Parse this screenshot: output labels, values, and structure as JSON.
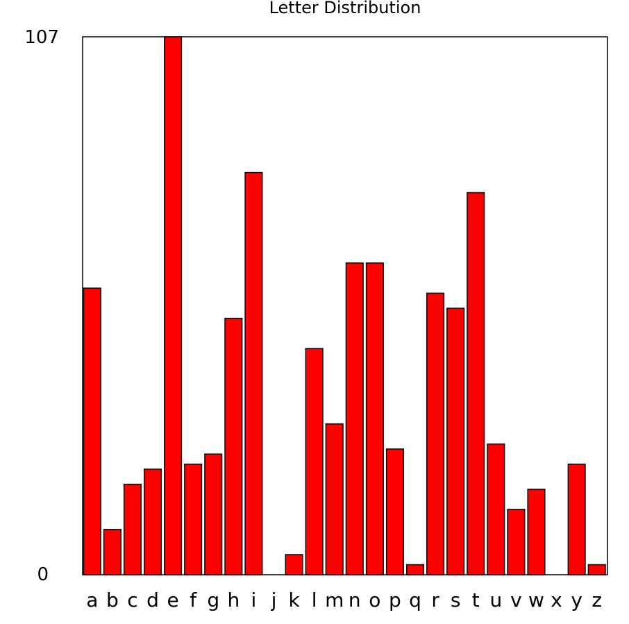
{
  "chart_data": {
    "type": "bar",
    "title": "Letter Distribution",
    "xlabel": "",
    "ylabel": "",
    "categories": [
      "a",
      "b",
      "c",
      "d",
      "e",
      "f",
      "g",
      "h",
      "i",
      "j",
      "k",
      "l",
      "m",
      "n",
      "o",
      "p",
      "q",
      "r",
      "s",
      "t",
      "u",
      "v",
      "w",
      "x",
      "y",
      "z"
    ],
    "values": [
      57,
      9,
      18,
      21,
      107,
      22,
      24,
      51,
      80,
      0,
      4,
      45,
      30,
      62,
      62,
      25,
      2,
      56,
      53,
      76,
      26,
      13,
      17,
      0,
      22,
      2
    ],
    "ylim": [
      0,
      107
    ],
    "yticks": [
      "0",
      "107"
    ],
    "bar_color": "#ff0000",
    "grid": false,
    "legend": "none"
  }
}
